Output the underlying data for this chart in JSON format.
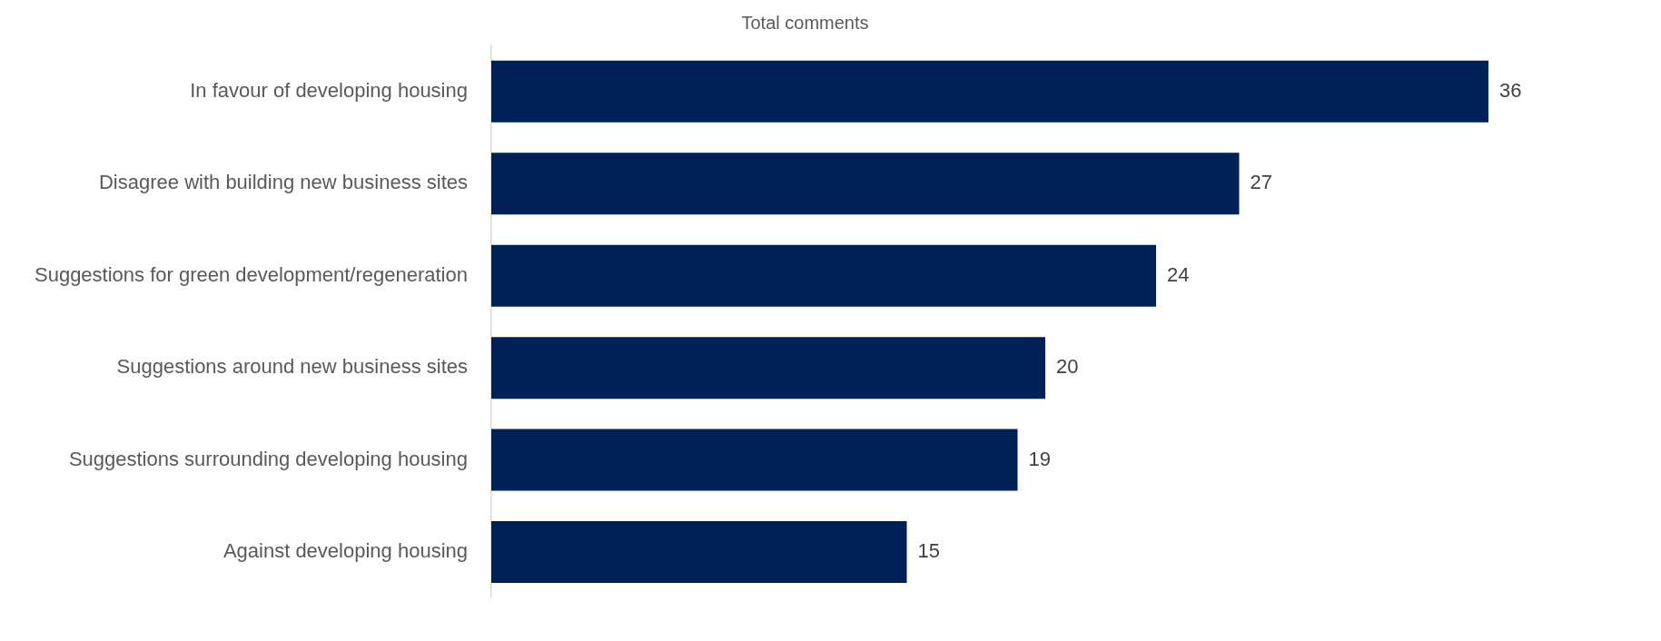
{
  "chart_data": {
    "type": "bar",
    "orientation": "horizontal",
    "title": "Total comments",
    "categories": [
      "In favour of developing housing",
      "Disagree with building new business sites",
      "Suggestions for green development/regeneration",
      "Suggestions around new business sites",
      "Suggestions surrounding developing housing",
      "Against developing housing"
    ],
    "values": [
      36,
      27,
      24,
      20,
      19,
      15
    ],
    "color": "#002157",
    "data_labels": true,
    "legend": false
  }
}
